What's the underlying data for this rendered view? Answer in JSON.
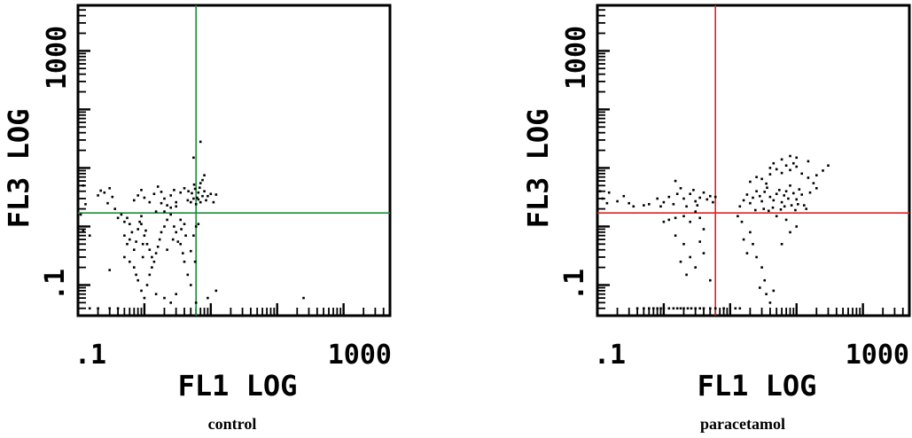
{
  "chart_data": [
    {
      "type": "scatter",
      "caption": "control",
      "xlabel": "FL1 LOG",
      "ylabel": "FL3 LOG",
      "x_scale": "log",
      "y_scale": "log",
      "xlim": [
        0.1,
        5000
      ],
      "ylim": [
        0.03,
        6000
      ],
      "x_tick_labels": [
        ".1",
        "1000"
      ],
      "y_tick_labels": [
        ".1",
        "1000"
      ],
      "quadrant_lines": {
        "x": 6,
        "y": 1.7,
        "color": "#1a8a3a"
      },
      "points": [
        [
          0.11,
          1.6
        ],
        [
          0.12,
          0.85
        ],
        [
          0.1,
          3.0
        ],
        [
          0.15,
          0.7
        ],
        [
          0.13,
          2.4
        ],
        [
          0.12,
          5.0
        ],
        [
          0.2,
          3.4
        ],
        [
          0.22,
          4.1
        ],
        [
          0.25,
          3.8
        ],
        [
          0.28,
          2.5
        ],
        [
          0.3,
          4.5
        ],
        [
          0.33,
          3.2
        ],
        [
          0.36,
          2.0
        ],
        [
          0.4,
          1.4
        ],
        [
          0.45,
          1.6
        ],
        [
          0.5,
          1.2
        ],
        [
          0.55,
          1.4
        ],
        [
          0.6,
          1.1
        ],
        [
          0.5,
          0.7
        ],
        [
          0.55,
          0.5
        ],
        [
          0.6,
          0.6
        ],
        [
          0.65,
          0.8
        ],
        [
          0.7,
          0.4
        ],
        [
          0.75,
          0.55
        ],
        [
          0.8,
          0.9
        ],
        [
          0.85,
          1.2
        ],
        [
          0.9,
          1.5
        ],
        [
          0.95,
          0.3
        ],
        [
          1.0,
          0.7
        ],
        [
          1.1,
          0.5
        ],
        [
          1.2,
          0.4
        ],
        [
          1.3,
          0.3
        ],
        [
          0.7,
          0.2
        ],
        [
          0.75,
          0.15
        ],
        [
          0.8,
          0.12
        ],
        [
          0.9,
          0.08
        ],
        [
          1.0,
          0.06
        ],
        [
          1.1,
          0.1
        ],
        [
          1.2,
          0.15
        ],
        [
          1.3,
          0.2
        ],
        [
          1.4,
          0.25
        ],
        [
          1.5,
          0.35
        ],
        [
          1.6,
          0.45
        ],
        [
          1.7,
          0.6
        ],
        [
          1.8,
          0.8
        ],
        [
          2.0,
          1.0
        ],
        [
          2.2,
          1.3
        ],
        [
          2.5,
          1.6
        ],
        [
          2.8,
          1.0
        ],
        [
          3.0,
          0.8
        ],
        [
          3.2,
          0.55
        ],
        [
          3.5,
          0.5
        ],
        [
          3.8,
          0.35
        ],
        [
          4.0,
          0.25
        ],
        [
          4.5,
          0.15
        ],
        [
          5.0,
          0.1
        ],
        [
          1.5,
          0.07
        ],
        [
          2.0,
          0.06
        ],
        [
          2.5,
          0.05
        ],
        [
          3.0,
          0.07
        ],
        [
          0.7,
          2.8
        ],
        [
          0.8,
          3.4
        ],
        [
          0.9,
          4.2
        ],
        [
          1.0,
          3.1
        ],
        [
          1.2,
          2.6
        ],
        [
          1.4,
          3.6
        ],
        [
          1.6,
          4.8
        ],
        [
          1.8,
          3.9
        ],
        [
          2.0,
          3.0
        ],
        [
          2.2,
          2.3
        ],
        [
          2.5,
          3.4
        ],
        [
          2.8,
          4.2
        ],
        [
          3.0,
          2.6
        ],
        [
          3.5,
          3.8
        ],
        [
          4.0,
          4.5
        ],
        [
          4.5,
          2.8
        ],
        [
          4.6,
          4.0
        ],
        [
          5.0,
          2.6
        ],
        [
          5.2,
          3.7
        ],
        [
          5.5,
          3.0
        ],
        [
          5.6,
          5.2
        ],
        [
          5.8,
          4.4
        ],
        [
          6.2,
          3.1
        ],
        [
          6.5,
          3.8
        ],
        [
          6.8,
          4.6
        ],
        [
          7.0,
          2.6
        ],
        [
          7.5,
          3.3
        ],
        [
          8.0,
          4.0
        ],
        [
          7.0,
          5.5
        ],
        [
          8.5,
          2.8
        ],
        [
          9.0,
          3.3
        ],
        [
          7.5,
          6.2
        ],
        [
          6.0,
          2.4
        ],
        [
          6.5,
          2.9
        ],
        [
          10,
          3.6
        ],
        [
          12,
          3.5
        ],
        [
          11,
          2.6
        ],
        [
          8.0,
          7.5
        ],
        [
          5.5,
          15
        ],
        [
          7.0,
          28
        ],
        [
          0.15,
          0.04
        ],
        [
          0.2,
          0.04
        ],
        [
          0.3,
          0.04
        ],
        [
          0.4,
          0.04
        ],
        [
          6.0,
          0.05
        ],
        [
          9.0,
          0.06
        ],
        [
          12,
          0.08
        ],
        [
          5.0,
          0.38
        ],
        [
          5.5,
          0.7
        ],
        [
          6.0,
          1.0
        ],
        [
          6.5,
          1.1
        ],
        [
          5.8,
          0.25
        ],
        [
          3.5,
          1.3
        ],
        [
          4.0,
          1.1
        ],
        [
          2.5,
          2.1
        ],
        [
          2.0,
          1.8
        ],
        [
          1.5,
          1.8
        ],
        [
          0.9,
          1.1
        ],
        [
          1.8,
          2.5
        ],
        [
          3.0,
          2.2
        ],
        [
          0.3,
          0.18
        ],
        [
          0.5,
          0.3
        ],
        [
          0.6,
          0.25
        ],
        [
          2.2,
          0.4
        ],
        [
          2.7,
          0.6
        ],
        [
          3.6,
          0.9
        ],
        [
          4.2,
          0.7
        ],
        [
          0.95,
          0.5
        ],
        [
          1.05,
          0.85
        ],
        [
          250,
          0.06
        ]
      ]
    },
    {
      "type": "scatter",
      "caption": "paracetamol",
      "xlabel": "FL1 LOG",
      "ylabel": "FL3 LOG",
      "x_scale": "log",
      "y_scale": "log",
      "xlim": [
        0.1,
        5000
      ],
      "ylim": [
        0.03,
        6000
      ],
      "x_tick_labels": [
        ".1",
        "1000"
      ],
      "y_tick_labels": [
        ".1",
        "1000"
      ],
      "quadrant_lines": {
        "x": 6,
        "y": 1.7,
        "color": "#dd2222"
      },
      "points": [
        [
          0.12,
          3.0
        ],
        [
          0.14,
          2.5
        ],
        [
          0.15,
          3.8
        ],
        [
          0.1,
          2.8
        ],
        [
          0.11,
          4.0
        ],
        [
          0.2,
          2.7
        ],
        [
          0.25,
          3.3
        ],
        [
          0.3,
          2.5
        ],
        [
          0.35,
          2.2
        ],
        [
          0.5,
          2.3
        ],
        [
          0.6,
          2.4
        ],
        [
          0.8,
          3.0
        ],
        [
          0.9,
          2.2
        ],
        [
          1.0,
          2.6
        ],
        [
          1.2,
          3.2
        ],
        [
          1.4,
          2.4
        ],
        [
          1.6,
          3.6
        ],
        [
          1.8,
          4.5
        ],
        [
          1.5,
          6.0
        ],
        [
          2.0,
          3.0
        ],
        [
          2.2,
          2.2
        ],
        [
          2.5,
          3.6
        ],
        [
          2.8,
          4.2
        ],
        [
          3.0,
          2.7
        ],
        [
          3.2,
          2.3
        ],
        [
          3.5,
          3.1
        ],
        [
          4.0,
          3.8
        ],
        [
          4.5,
          2.9
        ],
        [
          5.0,
          3.3
        ],
        [
          5.5,
          2.6
        ],
        [
          6.0,
          3.2
        ],
        [
          1.0,
          1.2
        ],
        [
          1.2,
          1.3
        ],
        [
          1.5,
          1.4
        ],
        [
          2.0,
          1.5
        ],
        [
          2.5,
          1.2
        ],
        [
          3.0,
          1.8
        ],
        [
          3.5,
          1.4
        ],
        [
          1.5,
          0.7
        ],
        [
          2.0,
          0.5
        ],
        [
          2.5,
          0.3
        ],
        [
          3.0,
          0.2
        ],
        [
          3.5,
          0.55
        ],
        [
          4.0,
          0.9
        ],
        [
          1.8,
          0.25
        ],
        [
          2.2,
          0.15
        ],
        [
          5.0,
          0.12
        ],
        [
          4.0,
          0.35
        ],
        [
          13,
          1.5
        ],
        [
          15,
          1.2
        ],
        [
          20,
          0.8
        ],
        [
          22,
          0.5
        ],
        [
          25,
          0.3
        ],
        [
          30,
          0.2
        ],
        [
          33,
          0.12
        ],
        [
          28,
          0.09
        ],
        [
          35,
          0.07
        ],
        [
          40,
          0.05
        ],
        [
          45,
          0.08
        ],
        [
          16,
          0.6
        ],
        [
          18,
          0.35
        ],
        [
          60,
          0.5
        ],
        [
          80,
          0.8
        ],
        [
          100,
          1.0
        ],
        [
          50,
          1.5
        ],
        [
          70,
          1.3
        ],
        [
          0.4,
          0.04
        ],
        [
          0.5,
          0.04
        ],
        [
          0.6,
          0.04
        ],
        [
          0.7,
          0.04
        ],
        [
          0.8,
          0.04
        ],
        [
          0.9,
          0.04
        ],
        [
          1.0,
          0.04
        ],
        [
          1.2,
          0.04
        ],
        [
          1.4,
          0.04
        ],
        [
          1.6,
          0.04
        ],
        [
          1.8,
          0.04
        ],
        [
          2.0,
          0.04
        ],
        [
          2.3,
          0.04
        ],
        [
          2.6,
          0.04
        ],
        [
          3.0,
          0.04
        ],
        [
          3.5,
          0.04
        ],
        [
          4.0,
          0.04
        ],
        [
          5.0,
          0.04
        ],
        [
          6.0,
          0.04
        ],
        [
          8.0,
          0.04
        ],
        [
          12,
          0.04
        ],
        [
          14,
          0.04
        ],
        [
          14,
          2.2
        ],
        [
          16,
          2.8
        ],
        [
          18,
          3.5
        ],
        [
          20,
          2.5
        ],
        [
          22,
          3.1
        ],
        [
          25,
          4.0
        ],
        [
          28,
          3.3
        ],
        [
          30,
          2.7
        ],
        [
          33,
          3.9
        ],
        [
          36,
          4.6
        ],
        [
          40,
          3.2
        ],
        [
          45,
          2.8
        ],
        [
          50,
          3.6
        ],
        [
          55,
          4.2
        ],
        [
          60,
          2.6
        ],
        [
          65,
          3.4
        ],
        [
          70,
          4.0
        ],
        [
          75,
          3.0
        ],
        [
          80,
          5.0
        ],
        [
          90,
          3.7
        ],
        [
          100,
          2.9
        ],
        [
          110,
          4.3
        ],
        [
          120,
          3.5
        ],
        [
          30,
          6.5
        ],
        [
          40,
          7.8
        ],
        [
          50,
          9.5
        ],
        [
          60,
          8.2
        ],
        [
          70,
          11
        ],
        [
          80,
          9.2
        ],
        [
          90,
          12
        ],
        [
          100,
          10.5
        ],
        [
          120,
          8.0
        ],
        [
          150,
          6.8
        ],
        [
          180,
          5.5
        ],
        [
          200,
          7.5
        ],
        [
          250,
          9.0
        ],
        [
          300,
          11
        ],
        [
          150,
          13
        ],
        [
          100,
          15
        ],
        [
          80,
          16
        ],
        [
          60,
          14
        ],
        [
          45,
          12
        ],
        [
          40,
          10
        ],
        [
          35,
          5.4
        ],
        [
          20,
          5.8
        ],
        [
          25,
          7.0
        ],
        [
          160,
          3.8
        ],
        [
          200,
          4.5
        ],
        [
          130,
          2.3
        ],
        [
          24,
          1.9
        ],
        [
          32,
          2.0
        ],
        [
          38,
          1.85
        ],
        [
          44,
          2.1
        ],
        [
          58,
          1.95
        ],
        [
          66,
          2.2
        ],
        [
          84,
          2.3
        ],
        [
          96,
          1.9
        ],
        [
          105,
          2.4
        ],
        [
          140,
          2.0
        ]
      ]
    }
  ]
}
